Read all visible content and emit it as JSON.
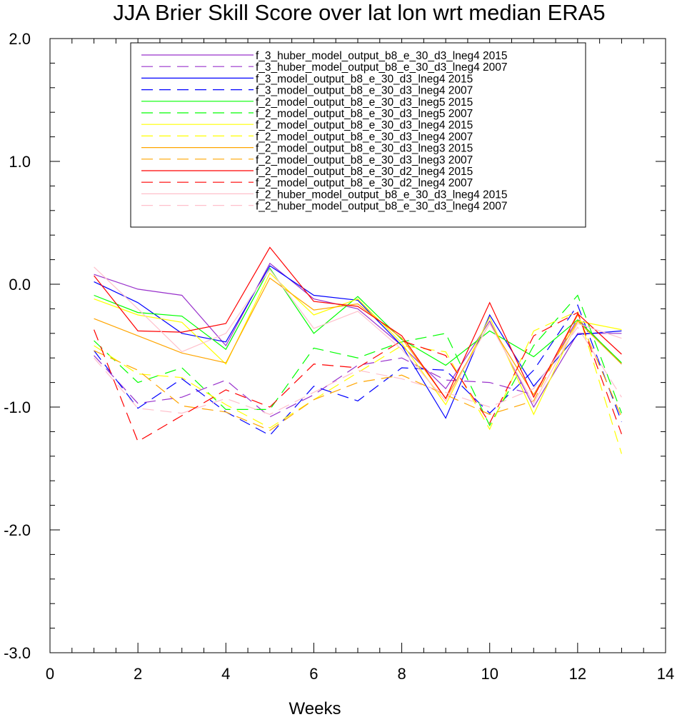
{
  "chart_data": {
    "type": "line",
    "title": "JJA Brier Skill Score over lat lon wrt median ERA5",
    "xlabel": "Weeks",
    "ylabel": "",
    "xlim": [
      0,
      14
    ],
    "ylim": [
      -3.0,
      2.0
    ],
    "xticks": [
      0,
      2,
      4,
      6,
      8,
      10,
      12,
      14
    ],
    "yticks": [
      -3.0,
      -2.0,
      -1.0,
      0.0,
      1.0,
      2.0
    ],
    "xtick_labels": [
      "0",
      "2",
      "4",
      "6",
      "8",
      "10",
      "12",
      "14"
    ],
    "ytick_labels": [
      "-3.0",
      "-2.0",
      "-1.0",
      "0.0",
      "1.0",
      "2.0"
    ],
    "grid": false,
    "legend_position": "top-center",
    "x": [
      1,
      2,
      3,
      4,
      5,
      6,
      7,
      8,
      9,
      10,
      11,
      12,
      13
    ],
    "series": [
      {
        "name": "f_3_huber_model_output_b8_e_30_d3_lneg4 2015",
        "color": "#9932cc",
        "dash": "solid",
        "values": [
          0.08,
          -0.04,
          -0.09,
          -0.5,
          0.17,
          -0.12,
          -0.2,
          -0.5,
          -0.85,
          -0.3,
          -1.0,
          -0.4,
          -0.4
        ]
      },
      {
        "name": "f_3_huber_model_output_b8_e_30_d3_lneg4 2007",
        "color": "#9932cc",
        "dash": "dashed",
        "values": [
          -0.58,
          -0.97,
          -0.92,
          -0.78,
          -1.08,
          -0.9,
          -0.66,
          -0.6,
          -0.78,
          -0.8,
          -0.9,
          -0.28,
          -0.65
        ]
      },
      {
        "name": "f_3_model_output_b8_e_30_d3_lneg4 2015",
        "color": "#0000ff",
        "dash": "solid",
        "values": [
          0.02,
          -0.15,
          -0.4,
          -0.47,
          0.15,
          -0.09,
          -0.13,
          -0.5,
          -1.09,
          -0.25,
          -0.83,
          -0.41,
          -0.38
        ]
      },
      {
        "name": "f_3_model_output_b8_e_30_d3_lneg4 2007",
        "color": "#0000ff",
        "dash": "dashed",
        "values": [
          -0.54,
          -1.01,
          -0.77,
          -1.04,
          -1.23,
          -0.83,
          -0.95,
          -0.68,
          -0.7,
          -1.05,
          -0.7,
          -0.17,
          -1.12
        ]
      },
      {
        "name": "f_2_model_output_b8_e_30_d3_lneg5 2015",
        "color": "#00ff00",
        "dash": "solid",
        "values": [
          -0.09,
          -0.23,
          -0.26,
          -0.53,
          0.13,
          -0.4,
          -0.1,
          -0.45,
          -0.66,
          -0.38,
          -0.59,
          -0.29,
          -0.64
        ]
      },
      {
        "name": "f_2_model_output_b8_e_30_d3_lneg5 2007",
        "color": "#00ff00",
        "dash": "dashed",
        "values": [
          -0.46,
          -0.8,
          -0.68,
          -1.02,
          -1.02,
          -0.52,
          -0.6,
          -0.47,
          -0.4,
          -1.15,
          -0.5,
          -0.09,
          -1.05
        ]
      },
      {
        "name": "f_2_model_output_b8_e_30_d3_lneg4 2015",
        "color": "#ffff00",
        "dash": "solid",
        "values": [
          -0.12,
          -0.25,
          -0.31,
          -0.65,
          0.09,
          -0.25,
          -0.12,
          -0.48,
          -0.98,
          -0.27,
          -1.06,
          -0.3,
          -0.37
        ]
      },
      {
        "name": "f_2_model_output_b8_e_30_d3_lneg4 2007",
        "color": "#ffff00",
        "dash": "dashed",
        "values": [
          -0.5,
          -0.73,
          -0.76,
          -0.98,
          -1.17,
          -0.94,
          -0.72,
          -0.5,
          -0.55,
          -1.18,
          -0.38,
          -0.22,
          -1.38
        ]
      },
      {
        "name": "f_2_model_output_b8_e_30_d3_lneg3 2015",
        "color": "#ffa500",
        "dash": "solid",
        "values": [
          -0.28,
          -0.42,
          -0.56,
          -0.64,
          0.05,
          -0.21,
          -0.16,
          -0.44,
          -0.93,
          -0.32,
          -0.9,
          -0.3,
          -0.65
        ]
      },
      {
        "name": "f_2_model_output_b8_e_30_d3_lneg3 2007",
        "color": "#ffa500",
        "dash": "dashed",
        "values": [
          -0.54,
          -0.7,
          -0.99,
          -1.04,
          -1.19,
          -0.94,
          -0.8,
          -0.74,
          -0.9,
          -1.06,
          -0.95,
          -0.25,
          -1.08
        ]
      },
      {
        "name": "f_2_model_output_b8_e_30_d2_lneg4 2015",
        "color": "#ff0000",
        "dash": "solid",
        "values": [
          0.07,
          -0.38,
          -0.39,
          -0.32,
          0.3,
          -0.14,
          -0.18,
          -0.42,
          -0.93,
          -0.15,
          -0.92,
          -0.24,
          -0.57
        ]
      },
      {
        "name": "f_2_model_output_b8_e_30_d2_lneg4 2007",
        "color": "#ff0000",
        "dash": "dashed",
        "values": [
          -0.37,
          -1.28,
          -1.07,
          -0.86,
          -1.0,
          -0.65,
          -0.68,
          -0.46,
          -0.58,
          -1.13,
          -0.42,
          -0.23,
          -1.22
        ]
      },
      {
        "name": "f_2_huber_model_output_b8_e_30_d3_lneg4 2015",
        "color": "#ffc0cb",
        "dash": "solid",
        "values": [
          0.14,
          -0.2,
          -0.55,
          -0.4,
          0.12,
          -0.36,
          -0.22,
          -0.53,
          -0.95,
          -0.32,
          -0.97,
          -0.32,
          -0.44
        ]
      },
      {
        "name": "f_2_huber_model_output_b8_e_30_d3_lneg4 2007",
        "color": "#ffc0cb",
        "dash": "dashed",
        "values": [
          -0.6,
          -1.01,
          -1.05,
          -0.93,
          -1.06,
          -0.88,
          -0.7,
          -0.77,
          -0.88,
          -1.0,
          -0.85,
          -0.35,
          -0.92
        ]
      }
    ]
  }
}
